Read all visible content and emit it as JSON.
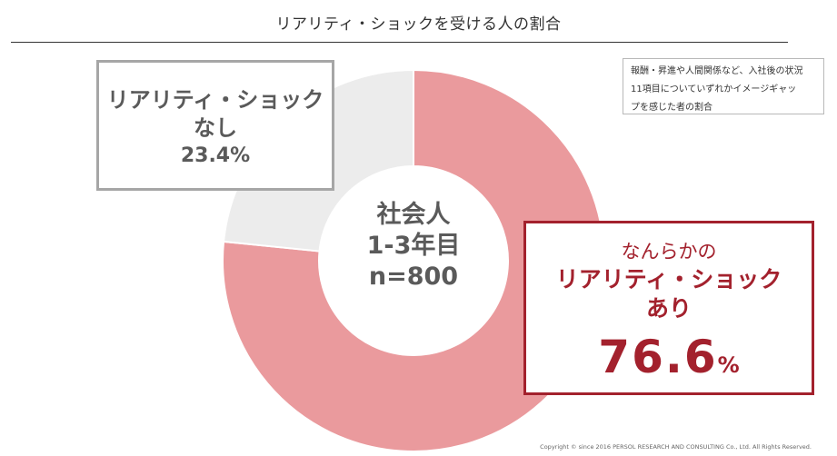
{
  "chart_data": {
    "type": "pie",
    "variant": "donut",
    "title": "リアリティ・ショックを受ける人の割合",
    "center_label": [
      "社会人",
      "1-3年目",
      "n=800"
    ],
    "slices": [
      {
        "label_lines": [
          "なんらかの",
          "リアリティ・ショック",
          "あり"
        ],
        "value_text": "76.6",
        "unit": "%",
        "value": 76.6,
        "color": "#ea9a9d"
      },
      {
        "label_lines": [
          "リアリティ・ショック",
          "なし"
        ],
        "value_text": "23.4%",
        "value": 23.4,
        "color": "#ececec"
      }
    ],
    "note_lines": [
      "報酬・昇進や人間関係など、入社後の状況",
      "11項目についていずれかイメージギャッ",
      "プを感じた者の割合"
    ],
    "start_angle_deg": 0,
    "direction": "clockwise",
    "highlight_color": "#a3212d",
    "neutral_color": "#5a5a5a"
  },
  "footer": {
    "copyright": "Copyright © since 2016  PERSOL  RESEARCH AND CONSULTING Co., Ltd. All Rights Reserved."
  }
}
